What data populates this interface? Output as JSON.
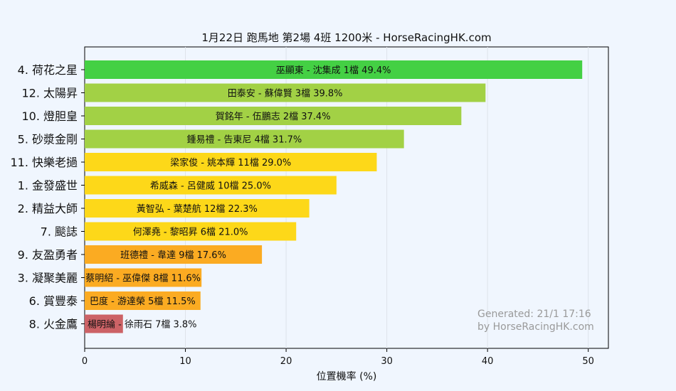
{
  "chart_data": {
    "type": "bar",
    "orientation": "horizontal",
    "title": "1月22日  跑馬地  第2場  4班  1200米 - HorseRacingHK.com",
    "xlabel": "位置機率 (%)",
    "ylabel": "",
    "xlim": [
      0,
      52
    ],
    "xticks": [
      "0",
      "10",
      "20",
      "30",
      "40",
      "50"
    ],
    "grid": "vertical",
    "categories": [
      "4. 荷花之星",
      "12. 太陽昇",
      "10. 燈胆皇",
      "5. 砂漿金剛",
      "11. 快樂老撾",
      "1. 金發盛世",
      "2. 精益大師",
      "7. 颷誌",
      "9. 友盈勇者",
      "3. 凝聚美麗",
      "6. 賞豐泰",
      "8. 火金鷹"
    ],
    "values": [
      49.4,
      39.8,
      37.4,
      31.7,
      29.0,
      25.0,
      22.3,
      21.0,
      17.6,
      11.6,
      11.5,
      3.8
    ],
    "data_labels": [
      "巫顯東 - 沈集成 1檔  49.4%",
      "田泰安 - 蘇偉賢 3檔  39.8%",
      "賀銘年 - 伍鵬志 2檔  37.4%",
      "鍾易禮 - 告東尼 4檔  31.7%",
      "梁家俊 - 姚本輝 11檔  29.0%",
      "希威森 - 呂健威 10檔  25.0%",
      "黃智弘 - 葉楚航 12檔  22.3%",
      "何澤堯 - 黎昭昇 6檔  21.0%",
      "班德禮 - 韋達 9檔  17.6%",
      "蔡明紹 - 巫偉傑 8檔  11.6%",
      "巴度 - 游達榮 5檔  11.5%",
      "楊明綸 - 徐雨石 7檔  3.8%"
    ],
    "colors": [
      "#44d044",
      "#a2d145",
      "#a2d145",
      "#a2d145",
      "#fdd819",
      "#fdd819",
      "#fdd819",
      "#fdd819",
      "#fbab22",
      "#fbab22",
      "#fbab22",
      "#cc6266"
    ],
    "annotation": [
      "Generated: 21/1 17:16",
      "by HorseRacingHK.com"
    ]
  }
}
